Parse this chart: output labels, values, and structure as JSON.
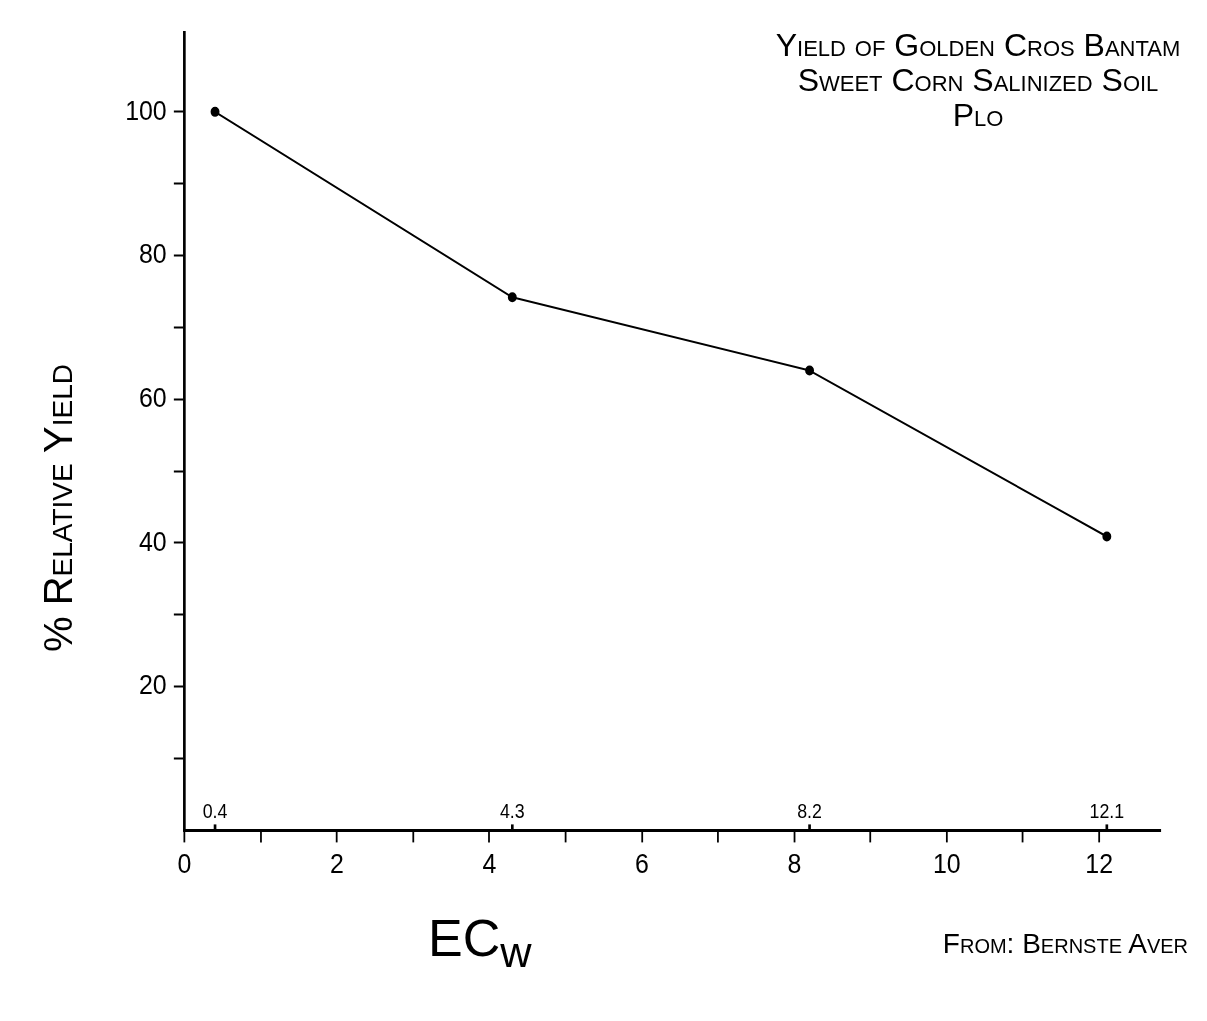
{
  "chart_data": {
    "type": "line",
    "title": "Yield of Golden Cros Bantam Sweet Corn Salinized Soil Plo",
    "xlabel": "EC$_{w}$",
    "ylabel": "% Relative Yield",
    "x": [
      0.4,
      4.3,
      8.2,
      12.1
    ],
    "series": [
      {
        "color": "#000000",
        "values": [
          100,
          74.2,
          64,
          40.9
        ]
      }
    ],
    "xlim": [
      0,
      12.8
    ],
    "xticks": [
      0,
      {
        "value": 1,
        "label": null
      },
      2,
      {
        "value": 3,
        "label": null
      },
      4,
      {
        "value": 5,
        "label": null
      },
      6,
      {
        "value": 7,
        "label": null
      },
      8,
      {
        "value": 9,
        "label": null
      },
      10,
      {
        "value": 11,
        "label": null
      },
      12
    ],
    "ylim": [
      0,
      111
    ],
    "yticks": [
      {
        "value": 10,
        "label": null
      },
      20,
      {
        "value": 30,
        "label": null
      },
      40,
      {
        "value": 50,
        "label": null
      },
      60,
      {
        "value": 70,
        "label": null
      },
      80,
      {
        "value": 90,
        "label": null
      },
      100
    ],
    "x2lim": [
      0,
      12.8
    ],
    "x2ticks": [
      0.4,
      4.3,
      8.2,
      12.1
    ],
    "annotations": [
      "From: Bernste Aver"
    ],
    "grid": false,
    "legend": false,
    "marker": "circle",
    "line_style": "solid"
  }
}
